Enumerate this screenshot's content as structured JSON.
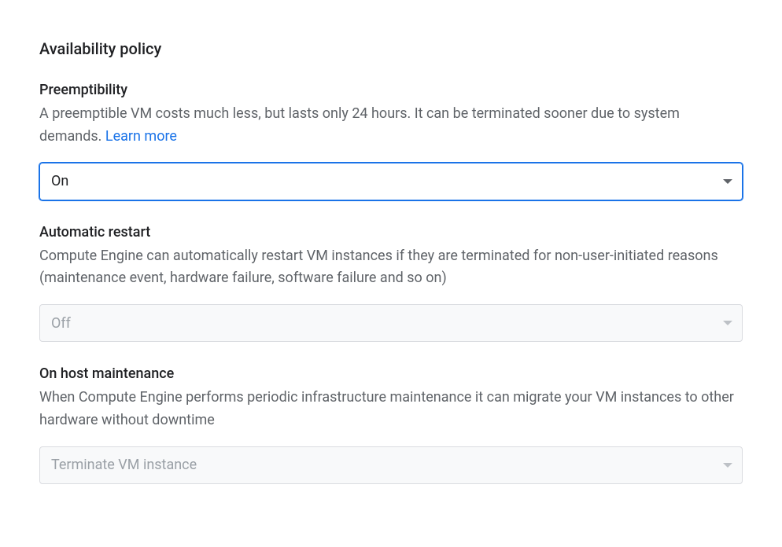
{
  "section": {
    "title": "Availability policy"
  },
  "fields": {
    "preemptibility": {
      "label": "Preemptibility",
      "description": "A preemptible VM costs much less, but lasts only 24 hours. It can be terminated sooner due to system demands. ",
      "learn_more": "Learn more",
      "selected_value": "On",
      "focused": true,
      "disabled": false
    },
    "automatic_restart": {
      "label": "Automatic restart",
      "description": "Compute Engine can automatically restart VM instances if they are terminated for non-user-initiated reasons (maintenance event, hardware failure, software failure and so on)",
      "selected_value": "Off",
      "focused": false,
      "disabled": true
    },
    "on_host_maintenance": {
      "label": "On host maintenance",
      "description": "When Compute Engine performs periodic infrastructure maintenance it can migrate your VM instances to other hardware without downtime",
      "selected_value": "Terminate VM instance",
      "focused": false,
      "disabled": true
    }
  },
  "colors": {
    "text_primary": "#202124",
    "text_secondary": "#5f6368",
    "text_disabled": "#9aa0a6",
    "link": "#1a73e8",
    "border_default": "#dadce0",
    "border_focused": "#1a73e8",
    "background_disabled": "#f8f9fa",
    "chevron_dark": "#5f6368",
    "chevron_light": "#bdc1c6"
  },
  "typography": {
    "section_title_size": 20,
    "field_label_size": 18,
    "description_size": 18,
    "select_value_size": 18,
    "font_family": "Roboto"
  }
}
